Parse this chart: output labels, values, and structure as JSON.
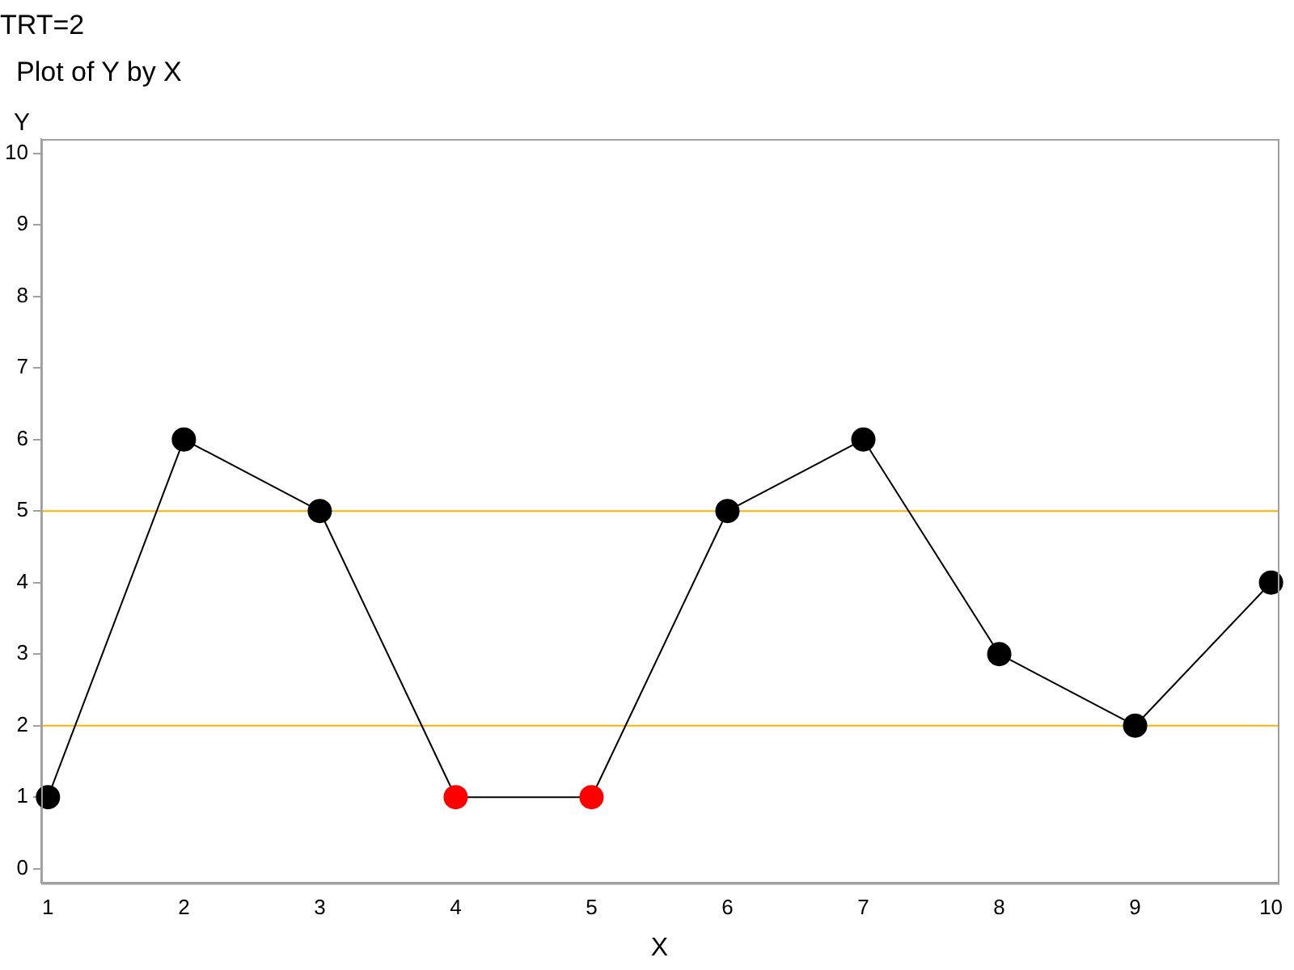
{
  "chart_data": {
    "type": "line",
    "title": "TRT=2",
    "subtitle": "Plot of Y by X",
    "xlabel": "X",
    "ylabel": "Y",
    "x": [
      1,
      2,
      3,
      4,
      5,
      6,
      7,
      8,
      9,
      10
    ],
    "series": [
      {
        "color": "#000000",
        "colors": [
          "#000000",
          "#000000",
          "#000000",
          "#ff0000",
          "#ff0000",
          "#000000",
          "#000000",
          "#000000",
          "#000000",
          "#000000"
        ],
        "values": [
          1,
          6,
          5,
          1,
          1,
          5,
          6,
          3,
          2,
          4
        ]
      }
    ],
    "xlim": [
      0.95,
      10.05
    ],
    "xticks": [
      1,
      2,
      3,
      4,
      5,
      6,
      7,
      8,
      9,
      10
    ],
    "ylim": [
      -0.2,
      10.2
    ],
    "yticks": [
      0,
      1,
      2,
      3,
      4,
      5,
      6,
      7,
      8,
      9,
      10
    ],
    "ref_lines": [
      {
        "axis": "y",
        "value": 5,
        "color": "#ffb000"
      },
      {
        "axis": "y",
        "value": 2,
        "color": "#ffb000"
      }
    ],
    "marker": "circle",
    "line_style": "solid",
    "grid": false,
    "legend": false
  }
}
